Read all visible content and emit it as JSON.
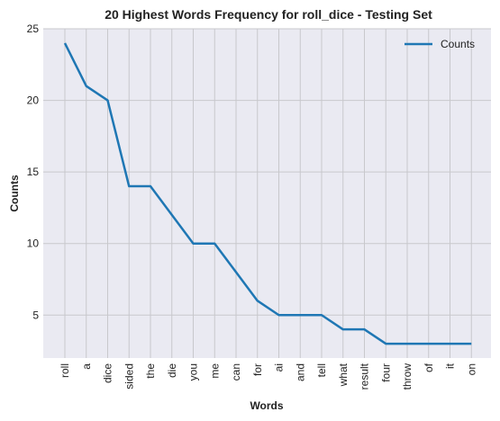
{
  "chart_data": {
    "type": "line",
    "title": "20 Highest Words Frequency for roll_dice - Testing Set",
    "xlabel": "Words",
    "ylabel": "Counts",
    "categories": [
      "roll",
      "a",
      "dice",
      "sided",
      "the",
      "die",
      "you",
      "me",
      "can",
      "for",
      "ai",
      "and",
      "tell",
      "what",
      "result",
      "four",
      "throw",
      "of",
      "it",
      "on"
    ],
    "series": [
      {
        "name": "Counts",
        "values": [
          24,
          21,
          20,
          14,
          14,
          12,
          10,
          10,
          8,
          6,
          5,
          5,
          5,
          4,
          4,
          3,
          3,
          3,
          3,
          3
        ],
        "color": "#1f77b4"
      }
    ],
    "ylim": [
      2,
      25
    ],
    "yticks": [
      5,
      10,
      15,
      20,
      25
    ],
    "grid": true,
    "legend": "top-right"
  }
}
